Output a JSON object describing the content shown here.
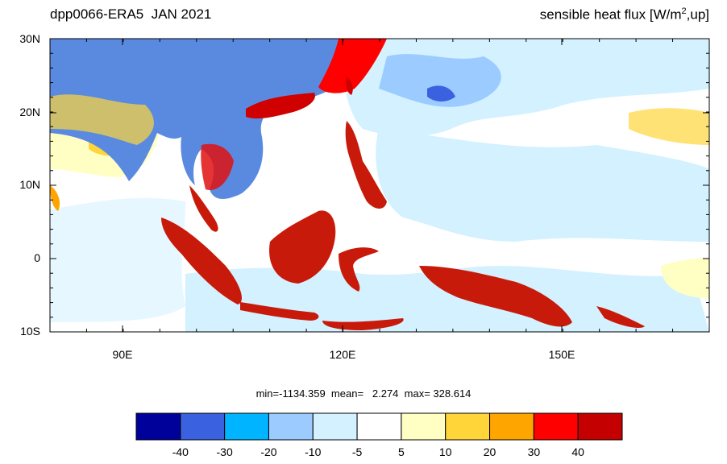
{
  "title_left": "dpp0066-ERA5  JAN 2021",
  "title_right_prefix": "sensible heat flux [W/m",
  "title_right_sup": "2",
  "title_right_suffix": ",up]",
  "lat_labels": [
    "30N",
    "20N",
    "10N",
    "0",
    "10S"
  ],
  "lon_labels": [
    "90E",
    "120E",
    "150E"
  ],
  "stats": {
    "min": "-1134.359",
    "mean": "2.274",
    "max": "328.614"
  },
  "colorbar": {
    "colors": [
      "#00009b",
      "#3a62e0",
      "#00b4ff",
      "#9ccbff",
      "#d3f1ff",
      "#ffffff",
      "#ffffc4",
      "#ffd53a",
      "#ffa500",
      "#ff0000",
      "#c40000"
    ],
    "labels": [
      "-40",
      "-30",
      "-20",
      "-10",
      "-5",
      "5",
      "10",
      "20",
      "30",
      "40"
    ]
  }
}
